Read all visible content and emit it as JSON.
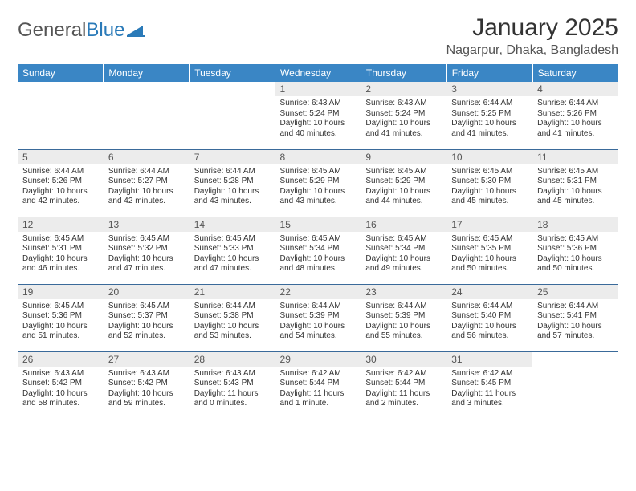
{
  "brand": {
    "name_gray": "General",
    "name_blue": "Blue",
    "mark_color": "#2a7ab8"
  },
  "title": "January 2025",
  "location": "Nagarpur, Dhaka, Bangladesh",
  "colors": {
    "header_bg": "#3a86c5",
    "header_fg": "#ffffff",
    "daynum_bg": "#ececec",
    "row_border": "#3a6a9a",
    "text": "#333333"
  },
  "typography": {
    "title_fontsize": 30,
    "location_fontsize": 16,
    "weekday_fontsize": 12,
    "daynum_fontsize": 12,
    "body_fontsize": 10
  },
  "weekdays": [
    "Sunday",
    "Monday",
    "Tuesday",
    "Wednesday",
    "Thursday",
    "Friday",
    "Saturday"
  ],
  "weeks": [
    [
      {
        "empty": true
      },
      {
        "empty": true
      },
      {
        "empty": true
      },
      {
        "day": "1",
        "sunrise": "Sunrise: 6:43 AM",
        "sunset": "Sunset: 5:24 PM",
        "daylight1": "Daylight: 10 hours",
        "daylight2": "and 40 minutes."
      },
      {
        "day": "2",
        "sunrise": "Sunrise: 6:43 AM",
        "sunset": "Sunset: 5:24 PM",
        "daylight1": "Daylight: 10 hours",
        "daylight2": "and 41 minutes."
      },
      {
        "day": "3",
        "sunrise": "Sunrise: 6:44 AM",
        "sunset": "Sunset: 5:25 PM",
        "daylight1": "Daylight: 10 hours",
        "daylight2": "and 41 minutes."
      },
      {
        "day": "4",
        "sunrise": "Sunrise: 6:44 AM",
        "sunset": "Sunset: 5:26 PM",
        "daylight1": "Daylight: 10 hours",
        "daylight2": "and 41 minutes."
      }
    ],
    [
      {
        "day": "5",
        "sunrise": "Sunrise: 6:44 AM",
        "sunset": "Sunset: 5:26 PM",
        "daylight1": "Daylight: 10 hours",
        "daylight2": "and 42 minutes."
      },
      {
        "day": "6",
        "sunrise": "Sunrise: 6:44 AM",
        "sunset": "Sunset: 5:27 PM",
        "daylight1": "Daylight: 10 hours",
        "daylight2": "and 42 minutes."
      },
      {
        "day": "7",
        "sunrise": "Sunrise: 6:44 AM",
        "sunset": "Sunset: 5:28 PM",
        "daylight1": "Daylight: 10 hours",
        "daylight2": "and 43 minutes."
      },
      {
        "day": "8",
        "sunrise": "Sunrise: 6:45 AM",
        "sunset": "Sunset: 5:29 PM",
        "daylight1": "Daylight: 10 hours",
        "daylight2": "and 43 minutes."
      },
      {
        "day": "9",
        "sunrise": "Sunrise: 6:45 AM",
        "sunset": "Sunset: 5:29 PM",
        "daylight1": "Daylight: 10 hours",
        "daylight2": "and 44 minutes."
      },
      {
        "day": "10",
        "sunrise": "Sunrise: 6:45 AM",
        "sunset": "Sunset: 5:30 PM",
        "daylight1": "Daylight: 10 hours",
        "daylight2": "and 45 minutes."
      },
      {
        "day": "11",
        "sunrise": "Sunrise: 6:45 AM",
        "sunset": "Sunset: 5:31 PM",
        "daylight1": "Daylight: 10 hours",
        "daylight2": "and 45 minutes."
      }
    ],
    [
      {
        "day": "12",
        "sunrise": "Sunrise: 6:45 AM",
        "sunset": "Sunset: 5:31 PM",
        "daylight1": "Daylight: 10 hours",
        "daylight2": "and 46 minutes."
      },
      {
        "day": "13",
        "sunrise": "Sunrise: 6:45 AM",
        "sunset": "Sunset: 5:32 PM",
        "daylight1": "Daylight: 10 hours",
        "daylight2": "and 47 minutes."
      },
      {
        "day": "14",
        "sunrise": "Sunrise: 6:45 AM",
        "sunset": "Sunset: 5:33 PM",
        "daylight1": "Daylight: 10 hours",
        "daylight2": "and 47 minutes."
      },
      {
        "day": "15",
        "sunrise": "Sunrise: 6:45 AM",
        "sunset": "Sunset: 5:34 PM",
        "daylight1": "Daylight: 10 hours",
        "daylight2": "and 48 minutes."
      },
      {
        "day": "16",
        "sunrise": "Sunrise: 6:45 AM",
        "sunset": "Sunset: 5:34 PM",
        "daylight1": "Daylight: 10 hours",
        "daylight2": "and 49 minutes."
      },
      {
        "day": "17",
        "sunrise": "Sunrise: 6:45 AM",
        "sunset": "Sunset: 5:35 PM",
        "daylight1": "Daylight: 10 hours",
        "daylight2": "and 50 minutes."
      },
      {
        "day": "18",
        "sunrise": "Sunrise: 6:45 AM",
        "sunset": "Sunset: 5:36 PM",
        "daylight1": "Daylight: 10 hours",
        "daylight2": "and 50 minutes."
      }
    ],
    [
      {
        "day": "19",
        "sunrise": "Sunrise: 6:45 AM",
        "sunset": "Sunset: 5:36 PM",
        "daylight1": "Daylight: 10 hours",
        "daylight2": "and 51 minutes."
      },
      {
        "day": "20",
        "sunrise": "Sunrise: 6:45 AM",
        "sunset": "Sunset: 5:37 PM",
        "daylight1": "Daylight: 10 hours",
        "daylight2": "and 52 minutes."
      },
      {
        "day": "21",
        "sunrise": "Sunrise: 6:44 AM",
        "sunset": "Sunset: 5:38 PM",
        "daylight1": "Daylight: 10 hours",
        "daylight2": "and 53 minutes."
      },
      {
        "day": "22",
        "sunrise": "Sunrise: 6:44 AM",
        "sunset": "Sunset: 5:39 PM",
        "daylight1": "Daylight: 10 hours",
        "daylight2": "and 54 minutes."
      },
      {
        "day": "23",
        "sunrise": "Sunrise: 6:44 AM",
        "sunset": "Sunset: 5:39 PM",
        "daylight1": "Daylight: 10 hours",
        "daylight2": "and 55 minutes."
      },
      {
        "day": "24",
        "sunrise": "Sunrise: 6:44 AM",
        "sunset": "Sunset: 5:40 PM",
        "daylight1": "Daylight: 10 hours",
        "daylight2": "and 56 minutes."
      },
      {
        "day": "25",
        "sunrise": "Sunrise: 6:44 AM",
        "sunset": "Sunset: 5:41 PM",
        "daylight1": "Daylight: 10 hours",
        "daylight2": "and 57 minutes."
      }
    ],
    [
      {
        "day": "26",
        "sunrise": "Sunrise: 6:43 AM",
        "sunset": "Sunset: 5:42 PM",
        "daylight1": "Daylight: 10 hours",
        "daylight2": "and 58 minutes."
      },
      {
        "day": "27",
        "sunrise": "Sunrise: 6:43 AM",
        "sunset": "Sunset: 5:42 PM",
        "daylight1": "Daylight: 10 hours",
        "daylight2": "and 59 minutes."
      },
      {
        "day": "28",
        "sunrise": "Sunrise: 6:43 AM",
        "sunset": "Sunset: 5:43 PM",
        "daylight1": "Daylight: 11 hours",
        "daylight2": "and 0 minutes."
      },
      {
        "day": "29",
        "sunrise": "Sunrise: 6:42 AM",
        "sunset": "Sunset: 5:44 PM",
        "daylight1": "Daylight: 11 hours",
        "daylight2": "and 1 minute."
      },
      {
        "day": "30",
        "sunrise": "Sunrise: 6:42 AM",
        "sunset": "Sunset: 5:44 PM",
        "daylight1": "Daylight: 11 hours",
        "daylight2": "and 2 minutes."
      },
      {
        "day": "31",
        "sunrise": "Sunrise: 6:42 AM",
        "sunset": "Sunset: 5:45 PM",
        "daylight1": "Daylight: 11 hours",
        "daylight2": "and 3 minutes."
      },
      {
        "empty": true
      }
    ]
  ]
}
